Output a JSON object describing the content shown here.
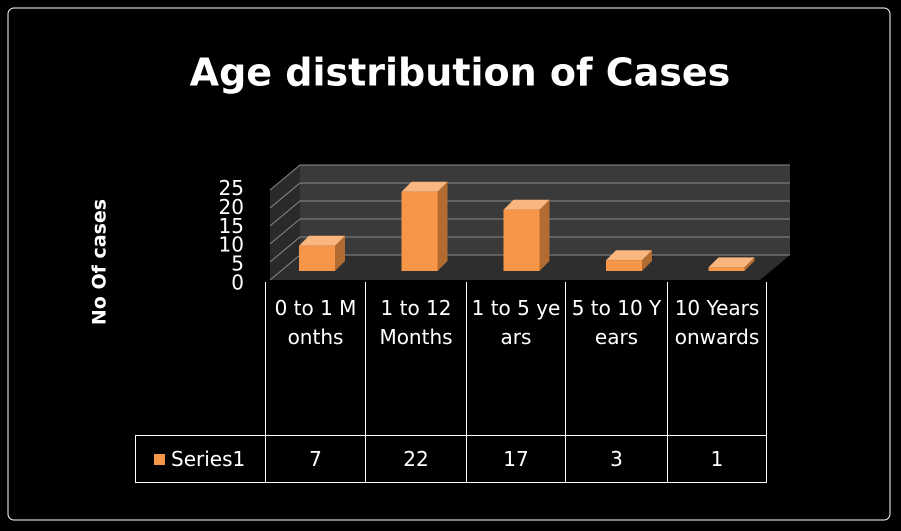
{
  "chart_data": {
    "type": "bar",
    "title": "Age distribution of Cases",
    "ylabel": "No Of cases",
    "categories": [
      "0 to 1 Months",
      "1 to 12 Months",
      "1 to 5 years",
      "5 to 10 Years",
      "10 Years onwards"
    ],
    "series": [
      {
        "name": "Series1",
        "color": "#f79646",
        "values": [
          7,
          22,
          17,
          3,
          1
        ]
      }
    ],
    "ylim": [
      0,
      25
    ],
    "yticks": [
      0,
      5,
      10,
      15,
      20,
      25
    ],
    "grid": true
  }
}
